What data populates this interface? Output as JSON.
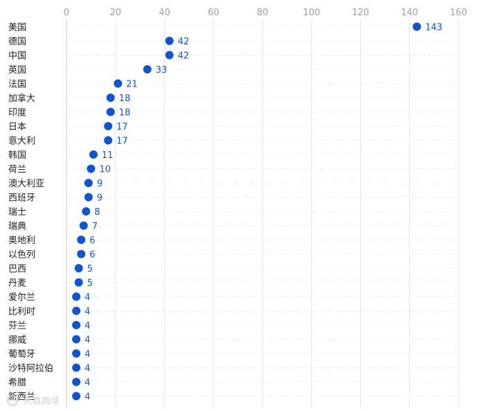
{
  "chart_data": {
    "type": "scatter",
    "orientation": "horizontal-dot",
    "categories": [
      "美国",
      "德国",
      "中国",
      "英国",
      "法国",
      "加拿大",
      "印度",
      "日本",
      "意大利",
      "韩国",
      "荷兰",
      "澳大利亚",
      "西班牙",
      "瑞士",
      "瑞典",
      "奥地利",
      "以色列",
      "巴西",
      "丹麦",
      "爱尔兰",
      "比利时",
      "芬兰",
      "挪威",
      "葡萄牙",
      "沙特阿拉伯",
      "希腊",
      "新西兰"
    ],
    "values": [
      143,
      42,
      42,
      33,
      21,
      18,
      18,
      17,
      17,
      11,
      10,
      9,
      9,
      8,
      7,
      6,
      6,
      5,
      5,
      4,
      4,
      4,
      4,
      4,
      4,
      4,
      4
    ],
    "x_ticks": [
      "0",
      "20",
      "40",
      "60",
      "80",
      "100",
      "120",
      "140",
      "160"
    ],
    "xlim": [
      0,
      160
    ],
    "grid": true,
    "axis_position": "top",
    "colors": {
      "dot": "#1155cc",
      "grid": "#e6e6e6",
      "row_line": "#eeeeee"
    }
  },
  "watermark": {
    "text": "大数跨境"
  }
}
